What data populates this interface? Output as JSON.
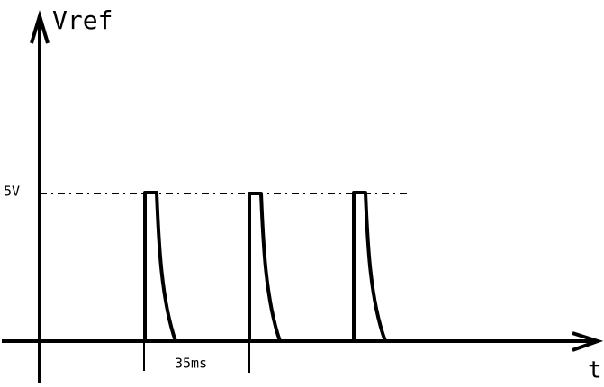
{
  "labels": {
    "y_axis": "Vref",
    "level": "5V",
    "period": "35ms",
    "x_axis": "t"
  }
}
